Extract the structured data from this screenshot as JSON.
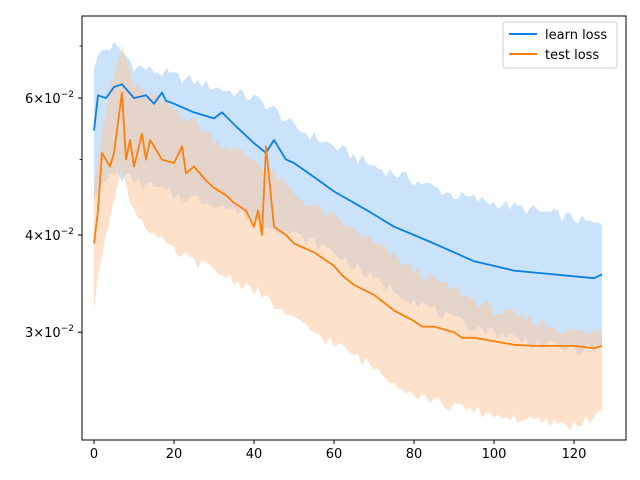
{
  "chart_data": {
    "type": "line",
    "title": "",
    "xlabel": "",
    "ylabel": "",
    "xlim": [
      -3,
      133
    ],
    "ylim": [
      0.0218,
      0.0765
    ],
    "yscale": "log",
    "grid": false,
    "legend_placement": "top-right",
    "x_ticks": [
      0,
      20,
      40,
      60,
      80,
      100,
      120
    ],
    "x_tick_labels": [
      "0",
      "20",
      "40",
      "60",
      "80",
      "100",
      "120"
    ],
    "y_major_ticks": [
      0.03,
      0.04,
      0.06
    ],
    "y_tick_labels": [
      {
        "mantissa": "3",
        "base": "10",
        "exp": "−2"
      },
      {
        "mantissa": "4",
        "base": "10",
        "exp": "−2"
      },
      {
        "mantissa": "6",
        "base": "10",
        "exp": "−2"
      }
    ],
    "y_minor_ticks": [
      0.05,
      0.07
    ],
    "series": [
      {
        "name": "learn loss",
        "color": "#1f77b4",
        "line_color": "#0a7fe8",
        "band_color": "#9ecbf5",
        "mean": {
          "x": [
            0,
            1,
            3,
            5,
            7,
            10,
            13,
            15,
            17,
            18,
            20,
            25,
            30,
            32,
            35,
            40,
            43,
            45,
            48,
            50,
            55,
            60,
            65,
            70,
            75,
            80,
            85,
            90,
            95,
            100,
            105,
            110,
            115,
            120,
            125,
            127
          ],
          "y": [
            0.0545,
            0.0605,
            0.06,
            0.062,
            0.0625,
            0.06,
            0.0605,
            0.059,
            0.061,
            0.0595,
            0.059,
            0.0575,
            0.0565,
            0.0575,
            0.0555,
            0.0525,
            0.051,
            0.053,
            0.05,
            0.0495,
            0.0475,
            0.0455,
            0.044,
            0.0425,
            0.041,
            0.04,
            0.039,
            0.038,
            0.037,
            0.0365,
            0.036,
            0.0358,
            0.0356,
            0.0354,
            0.0352,
            0.0356
          ]
        },
        "upper": {
          "x": [
            0,
            2,
            5,
            8,
            10,
            15,
            20,
            25,
            30,
            40,
            45,
            50,
            60,
            70,
            80,
            90,
            100,
            110,
            120,
            127
          ],
          "y": [
            0.066,
            0.069,
            0.07,
            0.068,
            0.066,
            0.065,
            0.064,
            0.063,
            0.062,
            0.06,
            0.058,
            0.055,
            0.052,
            0.049,
            0.047,
            0.045,
            0.044,
            0.043,
            0.042,
            0.041
          ]
        },
        "lower": {
          "x": [
            0,
            5,
            10,
            15,
            20,
            30,
            40,
            45,
            50,
            60,
            70,
            80,
            90,
            100,
            110,
            120,
            127
          ],
          "y": [
            0.045,
            0.048,
            0.047,
            0.046,
            0.045,
            0.044,
            0.042,
            0.041,
            0.04,
            0.038,
            0.035,
            0.033,
            0.031,
            0.03,
            0.029,
            0.0285,
            0.0285
          ]
        }
      },
      {
        "name": "test loss",
        "color": "#ff7f0e",
        "line_color": "#ff7f0e",
        "band_color": "#fcc9a0",
        "mean": {
          "x": [
            0,
            1,
            2,
            4,
            5,
            7,
            8,
            9,
            10,
            12,
            13,
            14,
            15,
            17,
            20,
            22,
            23,
            25,
            28,
            30,
            33,
            35,
            38,
            40,
            41,
            42,
            43,
            45,
            48,
            50,
            55,
            60,
            62,
            65,
            70,
            75,
            80,
            82,
            85,
            90,
            92,
            95,
            100,
            105,
            110,
            115,
            120,
            125,
            127
          ],
          "y": [
            0.039,
            0.043,
            0.051,
            0.049,
            0.051,
            0.061,
            0.05,
            0.053,
            0.049,
            0.054,
            0.05,
            0.053,
            0.052,
            0.05,
            0.0495,
            0.052,
            0.048,
            0.049,
            0.047,
            0.046,
            0.045,
            0.044,
            0.043,
            0.041,
            0.043,
            0.04,
            0.052,
            0.041,
            0.04,
            0.039,
            0.038,
            0.0365,
            0.0355,
            0.0345,
            0.0335,
            0.032,
            0.031,
            0.0305,
            0.0305,
            0.03,
            0.0295,
            0.0295,
            0.0292,
            0.0289,
            0.0288,
            0.0288,
            0.0288,
            0.0286,
            0.0288
          ]
        },
        "upper": {
          "x": [
            0,
            3,
            7,
            10,
            15,
            20,
            25,
            30,
            40,
            45,
            50,
            60,
            70,
            80,
            90,
            100,
            110,
            120,
            127
          ],
          "y": [
            0.047,
            0.058,
            0.07,
            0.062,
            0.06,
            0.058,
            0.056,
            0.053,
            0.05,
            0.048,
            0.045,
            0.042,
            0.039,
            0.036,
            0.034,
            0.032,
            0.031,
            0.03,
            0.03
          ]
        },
        "lower": {
          "x": [
            0,
            2,
            5,
            7,
            10,
            15,
            20,
            30,
            40,
            50,
            60,
            70,
            80,
            90,
            100,
            110,
            120,
            127
          ],
          "y": [
            0.032,
            0.038,
            0.045,
            0.048,
            0.043,
            0.04,
            0.038,
            0.036,
            0.034,
            0.031,
            0.029,
            0.027,
            0.025,
            0.024,
            0.0235,
            0.023,
            0.0228,
            0.0235
          ]
        }
      }
    ]
  }
}
